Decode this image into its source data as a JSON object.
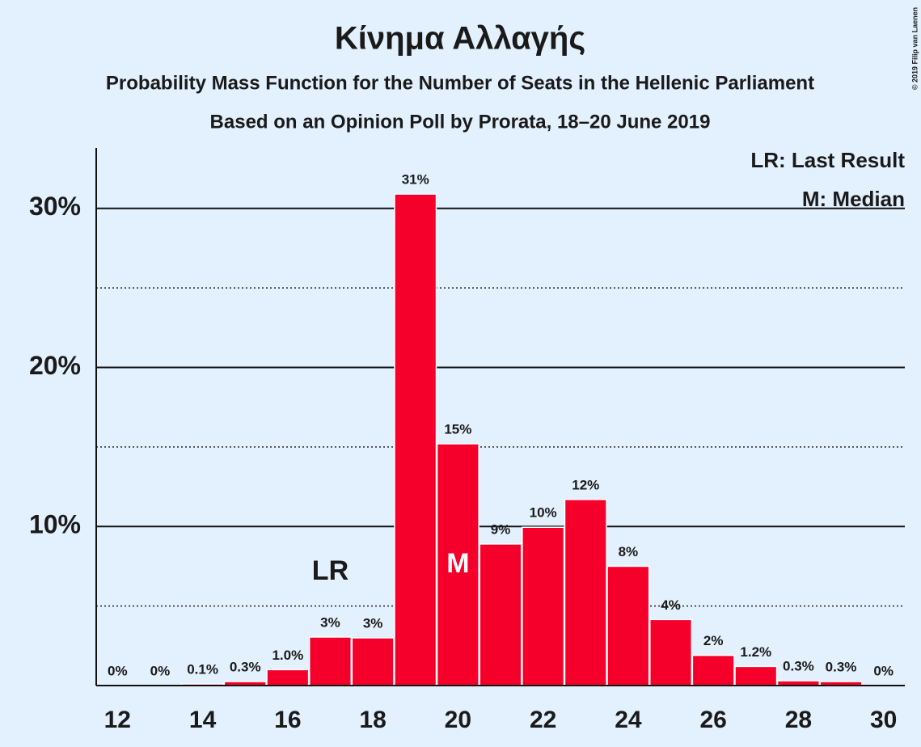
{
  "chart_data": {
    "type": "bar",
    "title": "Κίνημα Αλλαγής",
    "subtitle": "Probability Mass Function for the Number of Seats in the Hellenic Parliament",
    "subtitle2": "Based on an Opinion Poll by Prorata, 18–20 June 2019",
    "copyright": "© 2019 Filip van Laenen",
    "x": [
      12,
      13,
      14,
      15,
      16,
      17,
      18,
      19,
      20,
      21,
      22,
      23,
      24,
      25,
      26,
      27,
      28,
      29,
      30
    ],
    "values": [
      0,
      0,
      0.1,
      0.25,
      1.0,
      3.05,
      3.0,
      30.9,
      15.2,
      8.9,
      9.95,
      11.7,
      7.5,
      4.15,
      1.9,
      1.2,
      0.3,
      0.25,
      0
    ],
    "value_labels": [
      "0%",
      "0%",
      "0.1%",
      "0.3%",
      "1.0%",
      "3%",
      "3%",
      "31%",
      "15%",
      "9%",
      "10%",
      "12%",
      "8%",
      "4%",
      "2%",
      "1.2%",
      "0.3%",
      "0.3%",
      "0%"
    ],
    "color": "#f5002b",
    "xlim": [
      11.5,
      30.5
    ],
    "xticks": [
      12,
      14,
      16,
      18,
      20,
      22,
      24,
      26,
      28,
      30
    ],
    "ylim": [
      0,
      33.8
    ],
    "yticks": [
      {
        "value": 10,
        "label": "10%"
      },
      {
        "value": 20,
        "label": "20%"
      },
      {
        "value": 30,
        "label": "30%"
      }
    ],
    "minor_yticks": [
      5,
      15,
      25
    ],
    "grid": true,
    "annotations": [
      {
        "text": "LR",
        "x": 17
      },
      {
        "text": "M",
        "x": 20
      }
    ],
    "legend": [
      "LR: Last Result",
      "M: Median"
    ],
    "legend_position": "top-right"
  }
}
